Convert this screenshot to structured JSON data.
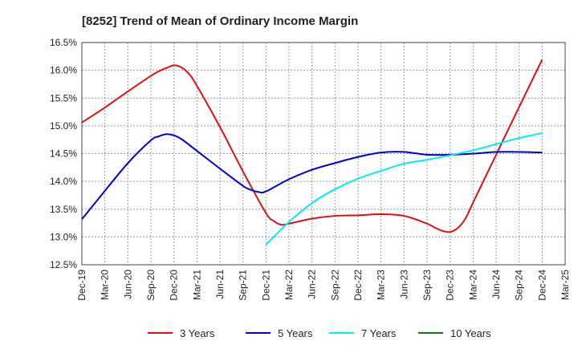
{
  "chart_data": {
    "type": "line",
    "title": "[8252]  Trend of Mean of Ordinary Income Margin",
    "xlabel": "",
    "ylabel": "",
    "x_ticks": [
      "Dec-19",
      "Mar-20",
      "Jun-20",
      "Sep-20",
      "Dec-20",
      "Mar-21",
      "Jun-21",
      "Sep-21",
      "Dec-21",
      "Mar-22",
      "Jun-22",
      "Sep-22",
      "Dec-22",
      "Mar-23",
      "Jun-23",
      "Sep-23",
      "Dec-23",
      "Mar-24",
      "Jun-24",
      "Sep-24",
      "Dec-24",
      "Mar-25"
    ],
    "y_ticks": [
      "12.5%",
      "13.0%",
      "13.5%",
      "14.0%",
      "14.5%",
      "15.0%",
      "15.5%",
      "16.0%",
      "16.5%"
    ],
    "ylim": [
      12.5,
      16.5
    ],
    "grid": true,
    "legend_position": "bottom",
    "series": [
      {
        "name": "3 Years",
        "color": "#dd1111",
        "points": [
          [
            "Dec-19",
            15.06
          ],
          [
            "Mar-20",
            15.33
          ],
          [
            "Jun-20",
            15.62
          ],
          [
            "Sep-20",
            15.9
          ],
          [
            "Oct-20",
            15.98
          ],
          [
            "Nov-20",
            16.04
          ],
          [
            "Dec-20",
            16.09
          ],
          [
            "Jan-21",
            16.05
          ],
          [
            "Feb-21",
            15.93
          ],
          [
            "Mar-21",
            15.72
          ],
          [
            "Jun-21",
            14.98
          ],
          [
            "Sep-21",
            14.18
          ],
          [
            "Dec-21",
            13.43
          ],
          [
            "Jan-22",
            13.29
          ],
          [
            "Feb-22",
            13.22
          ],
          [
            "Mar-22",
            13.24
          ],
          [
            "Jun-22",
            13.33
          ],
          [
            "Sep-22",
            13.38
          ],
          [
            "Dec-22",
            13.39
          ],
          [
            "Mar-23",
            13.41
          ],
          [
            "Jun-23",
            13.38
          ],
          [
            "Sep-23",
            13.24
          ],
          [
            "Oct-23",
            13.17
          ],
          [
            "Nov-23",
            13.11
          ],
          [
            "Dec-23",
            13.09
          ],
          [
            "Jan-24",
            13.16
          ],
          [
            "Feb-24",
            13.33
          ],
          [
            "Mar-24",
            13.62
          ],
          [
            "Jun-24",
            14.48
          ],
          [
            "Sep-24",
            15.34
          ],
          [
            "Dec-24",
            16.19
          ]
        ]
      },
      {
        "name": "5 Years",
        "color": "#0000cc",
        "points": [
          [
            "Dec-19",
            13.32
          ],
          [
            "Mar-20",
            13.83
          ],
          [
            "Jun-20",
            14.33
          ],
          [
            "Sep-20",
            14.74
          ],
          [
            "Oct-20",
            14.81
          ],
          [
            "Nov-20",
            14.85
          ],
          [
            "Dec-20",
            14.83
          ],
          [
            "Jan-21",
            14.76
          ],
          [
            "Mar-21",
            14.55
          ],
          [
            "Jun-21",
            14.23
          ],
          [
            "Sep-21",
            13.92
          ],
          [
            "Oct-21",
            13.85
          ],
          [
            "Nov-21",
            13.81
          ],
          [
            "Dec-21",
            13.82
          ],
          [
            "Mar-22",
            14.04
          ],
          [
            "Jun-22",
            14.21
          ],
          [
            "Sep-22",
            14.33
          ],
          [
            "Dec-22",
            14.44
          ],
          [
            "Mar-23",
            14.52
          ],
          [
            "Jun-23",
            14.53
          ],
          [
            "Sep-23",
            14.48
          ],
          [
            "Dec-23",
            14.48
          ],
          [
            "Mar-24",
            14.5
          ],
          [
            "Jun-24",
            14.53
          ],
          [
            "Sep-24",
            14.53
          ],
          [
            "Dec-24",
            14.52
          ]
        ]
      },
      {
        "name": "7 Years",
        "color": "#00eeee",
        "points": [
          [
            "Dec-21",
            12.86
          ],
          [
            "Mar-22",
            13.27
          ],
          [
            "Jun-22",
            13.61
          ],
          [
            "Sep-22",
            13.86
          ],
          [
            "Dec-22",
            14.05
          ],
          [
            "Mar-23",
            14.19
          ],
          [
            "Jun-23",
            14.32
          ],
          [
            "Sep-23",
            14.39
          ],
          [
            "Dec-23",
            14.47
          ],
          [
            "Mar-24",
            14.56
          ],
          [
            "Jun-24",
            14.67
          ],
          [
            "Sep-24",
            14.78
          ],
          [
            "Dec-24",
            14.87
          ]
        ]
      },
      {
        "name": "10 Years",
        "color": "#117711",
        "points": []
      }
    ]
  }
}
